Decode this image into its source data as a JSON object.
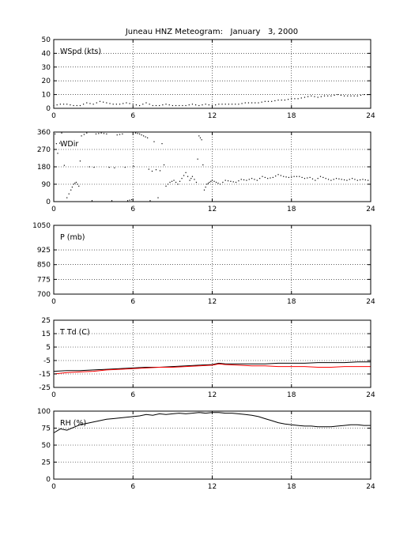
{
  "title": "Juneau HNZ Meteogram:   January   3, 2000",
  "colors": {
    "black": "#000000",
    "red": "#ff0000",
    "grid": "#000000"
  },
  "chart_data": [
    {
      "type": "line",
      "panel_label": "WSpd (kts)",
      "xlim": [
        0,
        24
      ],
      "ylim": [
        0,
        50
      ],
      "xticks": [
        0,
        6,
        12,
        18,
        24
      ],
      "yticks": [
        0,
        10,
        20,
        30,
        40,
        50
      ],
      "grid": true,
      "series": [
        {
          "color": "#000000",
          "style": "dots",
          "x": [
            0,
            0.5,
            1,
            1.5,
            2,
            2.5,
            3,
            3.5,
            4,
            4.5,
            5,
            5.5,
            6,
            6.5,
            7,
            7.5,
            8,
            8.5,
            9,
            9.5,
            10,
            10.5,
            11,
            11.5,
            12,
            12.5,
            13,
            13.5,
            14,
            14.5,
            15,
            15.5,
            16,
            16.5,
            17,
            17.5,
            18,
            18.5,
            19,
            19.5,
            20,
            20.5,
            21,
            21.5,
            22,
            22.5,
            23,
            23.5,
            24
          ],
          "y": [
            2,
            3,
            3,
            2,
            2,
            4,
            3,
            5,
            4,
            3,
            3,
            4,
            3,
            2,
            4,
            2,
            2,
            3,
            2,
            2,
            2,
            3,
            2,
            3,
            2,
            3,
            3,
            3,
            3,
            4,
            4,
            4,
            5,
            5,
            6,
            6,
            7,
            7,
            8,
            9,
            8,
            9,
            9,
            10,
            9,
            9,
            9,
            10,
            10
          ]
        }
      ]
    },
    {
      "type": "scatter",
      "panel_label": "WDir",
      "xlim": [
        0,
        24
      ],
      "ylim": [
        0,
        360
      ],
      "xticks": [
        0,
        6,
        12,
        18,
        24
      ],
      "yticks": [
        0,
        90,
        180,
        270,
        360
      ],
      "grid": true,
      "series": [
        {
          "color": "#000000",
          "style": "dots",
          "x": [
            0.1,
            0.3,
            0.6,
            1.0,
            1.3,
            1.5,
            1.7,
            1.9,
            2.1,
            2.5,
            2.9,
            3.2,
            3.6,
            4.0,
            4.4,
            4.8,
            5.2,
            5.6,
            5.9,
            6.2,
            6.5,
            6.8,
            7.1,
            7.3,
            7.6,
            7.9,
            8.2,
            8.5,
            8.8,
            9.1,
            9.4,
            9.7,
            10.0,
            10.3,
            10.5,
            10.8,
            11.0,
            11.2,
            11.4,
            11.6,
            11.8,
            12.0,
            12.3,
            12.6,
            13.0,
            13.4,
            13.8,
            14.2,
            14.6,
            15.0,
            15.4,
            15.8,
            16.2,
            16.6,
            17.0,
            17.4,
            17.8,
            18.2,
            18.6,
            19.0,
            19.4,
            19.8,
            20.2,
            20.6,
            21.0,
            21.4,
            21.8,
            22.2,
            22.6,
            23.0,
            23.4,
            23.8
          ],
          "y": [
            350,
            250,
            355,
            20,
            60,
            90,
            100,
            80,
            340,
            355,
            5,
            350,
            355,
            350,
            5,
            345,
            350,
            5,
            10,
            355,
            350,
            340,
            330,
            5,
            310,
            20,
            300,
            80,
            100,
            110,
            90,
            120,
            150,
            110,
            130,
            100,
            340,
            320,
            60,
            90,
            100,
            110,
            100,
            90,
            110,
            105,
            100,
            115,
            110,
            120,
            110,
            130,
            120,
            125,
            140,
            130,
            125,
            130,
            130,
            120,
            125,
            110,
            130,
            120,
            110,
            120,
            115,
            110,
            120,
            110,
            115,
            110
          ]
        }
      ]
    },
    {
      "type": "line",
      "panel_label": "P (mb)",
      "xlim": [
        0,
        24
      ],
      "ylim": [
        700,
        1050
      ],
      "xticks": [
        0,
        6,
        12,
        18,
        24
      ],
      "yticks": [
        700,
        775,
        850,
        925,
        1050
      ],
      "grid": true,
      "series": []
    },
    {
      "type": "line",
      "panel_label": "T Td (C)",
      "xlim": [
        0,
        24
      ],
      "ylim": [
        -25,
        25
      ],
      "xticks": [
        0,
        6,
        12,
        18,
        24
      ],
      "yticks": [
        -25,
        -15,
        -5,
        5,
        15,
        25
      ],
      "grid": true,
      "series": [
        {
          "color": "#000000",
          "style": "line",
          "x": [
            0,
            1,
            2,
            3,
            4,
            5,
            6,
            7,
            8,
            9,
            10,
            11,
            12,
            12.5,
            13,
            14,
            15,
            16,
            17,
            18,
            19,
            20,
            21,
            22,
            23,
            24
          ],
          "y": [
            -13,
            -12.5,
            -12.5,
            -12,
            -11.5,
            -11,
            -10.5,
            -10,
            -10,
            -9.5,
            -9,
            -8.5,
            -8,
            -7,
            -7.5,
            -7.5,
            -7.5,
            -7.5,
            -7,
            -7,
            -7,
            -6.5,
            -6.5,
            -6.5,
            -6,
            -6
          ]
        },
        {
          "color": "#ff0000",
          "style": "line",
          "x": [
            0,
            1,
            2,
            3,
            4,
            5,
            6,
            7,
            8,
            9,
            10,
            11,
            12,
            12.5,
            13,
            14,
            15,
            16,
            17,
            18,
            19,
            20,
            21,
            22,
            23,
            24
          ],
          "y": [
            -15,
            -14,
            -13.5,
            -13,
            -12,
            -11.5,
            -11,
            -10.5,
            -10,
            -10,
            -9.5,
            -9,
            -8.5,
            -7.5,
            -8,
            -8.5,
            -9,
            -9,
            -9.5,
            -9.5,
            -9.5,
            -10,
            -10,
            -9.5,
            -9.5,
            -9.5
          ]
        }
      ]
    },
    {
      "type": "line",
      "panel_label": "RH (%)",
      "xlim": [
        0,
        24
      ],
      "ylim": [
        0,
        100
      ],
      "xticks": [
        0,
        6,
        12,
        18,
        24
      ],
      "yticks": [
        0,
        25,
        50,
        75,
        100
      ],
      "grid": true,
      "series": [
        {
          "color": "#000000",
          "style": "line",
          "x": [
            0,
            0.5,
            1,
            1.5,
            2,
            2.5,
            3,
            3.5,
            4,
            4.5,
            5,
            5.5,
            6,
            6.5,
            7,
            7.5,
            8,
            8.5,
            9,
            9.5,
            10,
            10.5,
            11,
            11.5,
            12,
            12.5,
            13,
            13.5,
            14,
            14.5,
            15,
            15.5,
            16,
            16.5,
            17,
            17.5,
            18,
            18.5,
            19,
            19.5,
            20,
            20.5,
            21,
            21.5,
            22,
            22.5,
            23,
            23.5,
            24
          ],
          "y": [
            68,
            74,
            72,
            76,
            80,
            82,
            84,
            86,
            88,
            89,
            90,
            91,
            92,
            93,
            95,
            94,
            96,
            95,
            96,
            97,
            96,
            97,
            98,
            97,
            98,
            98,
            97,
            97,
            96,
            95,
            94,
            92,
            89,
            86,
            83,
            81,
            80,
            79,
            78,
            78,
            77,
            77,
            77,
            78,
            79,
            80,
            80,
            79,
            79
          ]
        }
      ]
    }
  ]
}
